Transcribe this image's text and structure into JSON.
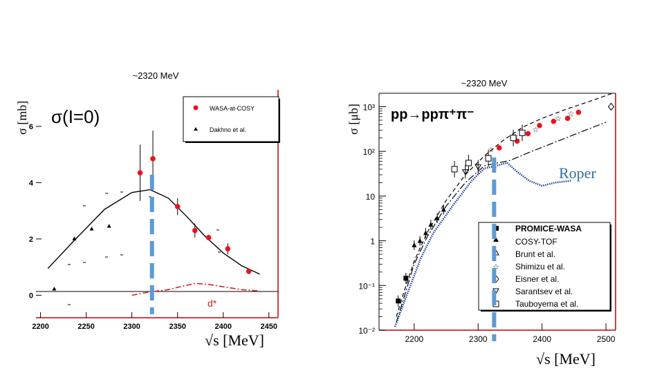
{
  "colors": {
    "wasa": "#e8141b",
    "blue_dash": "#5b9bd5",
    "dstar": "#cc2222",
    "roper": "#2e6da4",
    "axis_red": "#c00000",
    "dotted": "#1f3fa0"
  },
  "left": {
    "energy_note": "~2320 MeV",
    "title": "σ(I=0)",
    "ylabel": "σ [mb]",
    "xlabel": "√s  [MeV]",
    "dstar_label": "d*",
    "legend": [
      "WASA-at-COSY",
      "Dakhno et al."
    ]
  },
  "right": {
    "energy_note": "~2320 MeV",
    "title": "pp→ppπ⁺π⁻",
    "ylabel": "σ [μb]",
    "xlabel": "√s [MeV]",
    "roper_label": "Roper",
    "legend": [
      "PROMICE-WASA",
      "COSY-TOF",
      "Brunt et al.",
      "Shimizu et al.",
      "Eisner et al.",
      "Sarantsev et al.",
      "Tauboyema et al."
    ]
  },
  "chart_data": [
    {
      "type": "scatter",
      "title": "σ(I=0)",
      "xlabel": "√s [MeV]",
      "ylabel": "σ [mb]",
      "xlim": [
        2195,
        2460
      ],
      "ylim": [
        -0.8,
        7.3
      ],
      "xticks": [
        2200,
        2250,
        2300,
        2350,
        2400,
        2450
      ],
      "yticks": [
        0,
        2,
        4,
        6
      ],
      "series": [
        {
          "name": "WASA-at-COSY",
          "marker": "circle",
          "x": [
            2309,
            2323,
            2350,
            2369,
            2384,
            2405,
            2428
          ],
          "y": [
            4.35,
            4.85,
            3.15,
            2.3,
            2.05,
            1.65,
            0.85
          ],
          "err": [
            1.0,
            1.0,
            0.3,
            0.25,
            0.1,
            0.2,
            0.1
          ]
        },
        {
          "name": "Dakhno et al.",
          "marker": "triangle",
          "x": [
            2215,
            2237,
            2256,
            2275
          ],
          "y": [
            0.22,
            2.0,
            2.35,
            2.45
          ]
        },
        {
          "name": "fit",
          "style": "solid",
          "x": [
            2208,
            2240,
            2270,
            2300,
            2320,
            2340,
            2360,
            2380,
            2400,
            2420,
            2440
          ],
          "y": [
            0.95,
            2.05,
            3.05,
            3.65,
            3.75,
            3.45,
            2.8,
            2.1,
            1.5,
            1.05,
            0.75
          ]
        },
        {
          "name": "d*",
          "style": "dash-dot",
          "x": [
            2300,
            2320,
            2340,
            2355,
            2370,
            2385,
            2400,
            2420,
            2440
          ],
          "y": [
            0.0,
            0.12,
            0.2,
            0.32,
            0.42,
            0.38,
            0.3,
            0.2,
            0.15
          ]
        }
      ],
      "marker_line_x": 2322
    },
    {
      "type": "scatter",
      "title": "pp→ppπ⁺π⁻",
      "xlabel": "√s [MeV]",
      "ylabel": "σ [μb]",
      "xscale": "linear",
      "yscale": "log",
      "xlim": [
        2145,
        2515
      ],
      "ylim": [
        0.01,
        2000
      ],
      "xticks": [
        2200,
        2300,
        2400,
        2500
      ],
      "ytick_labels": [
        "10⁻²",
        "10⁻¹",
        "1",
        "10",
        "10²",
        "10³"
      ],
      "series": [
        {
          "name": "PROMICE-WASA",
          "marker": "square",
          "x": [
            2175,
            2187
          ],
          "y": [
            0.045,
            0.145
          ]
        },
        {
          "name": "COSY-TOF",
          "marker": "triangle",
          "x": [
            2200,
            2209,
            2218,
            2226,
            2236,
            2246
          ],
          "y": [
            0.8,
            1.0,
            1.5,
            2.3,
            3.2,
            5.0
          ]
        },
        {
          "name": "WASA-at-COSY",
          "marker": "circle",
          "x": [
            2333,
            2361,
            2378,
            2396,
            2418,
            2440,
            2457
          ],
          "y": [
            120,
            170,
            250,
            380,
            470,
            550,
            750
          ]
        },
        {
          "name": "Shimizu et al.",
          "marker": "star",
          "x": [
            2320,
            2358,
            2390,
            2425,
            2445
          ],
          "y": [
            110,
            220,
            310,
            550,
            700
          ]
        },
        {
          "name": "Eisner et al.",
          "marker": "diamond",
          "x": [
            2508
          ],
          "y": [
            1000
          ]
        },
        {
          "name": "Sarantsev et al.",
          "marker": "tri-open",
          "x": [
            2280,
            2300
          ],
          "y": [
            35,
            45
          ]
        },
        {
          "name": "Tauboyema et al.",
          "marker": "open-square",
          "x": [
            2263,
            2285,
            2316,
            2355,
            2369
          ],
          "y": [
            40,
            55,
            70,
            200,
            260
          ]
        },
        {
          "name": "dashed model",
          "style": "dashed",
          "x": [
            2172,
            2185,
            2200,
            2220,
            2250,
            2280,
            2310,
            2340,
            2370,
            2400,
            2440,
            2480,
            2510
          ],
          "y": [
            0.02,
            0.08,
            0.35,
            1.5,
            8,
            30,
            80,
            180,
            350,
            550,
            900,
            1400,
            2000
          ]
        },
        {
          "name": "dash-dot model",
          "style": "dash-dot",
          "x": [
            2172,
            2185,
            2200,
            2220,
            2250,
            2280,
            2310,
            2330,
            2350,
            2380,
            2420,
            2460,
            2500
          ],
          "y": [
            0.015,
            0.06,
            0.3,
            1.2,
            6,
            20,
            48,
            55,
            63,
            95,
            160,
            270,
            450
          ]
        },
        {
          "name": "Roper",
          "style": "dotted",
          "x": [
            2170,
            2190,
            2210,
            2230,
            2260,
            2290,
            2310,
            2325,
            2345,
            2360,
            2380,
            2400,
            2420,
            2445
          ],
          "y": [
            0.012,
            0.07,
            0.4,
            1.5,
            6,
            22,
            42,
            46,
            56,
            36,
            22,
            17,
            20,
            22
          ]
        }
      ],
      "marker_line_x": 2325
    }
  ]
}
